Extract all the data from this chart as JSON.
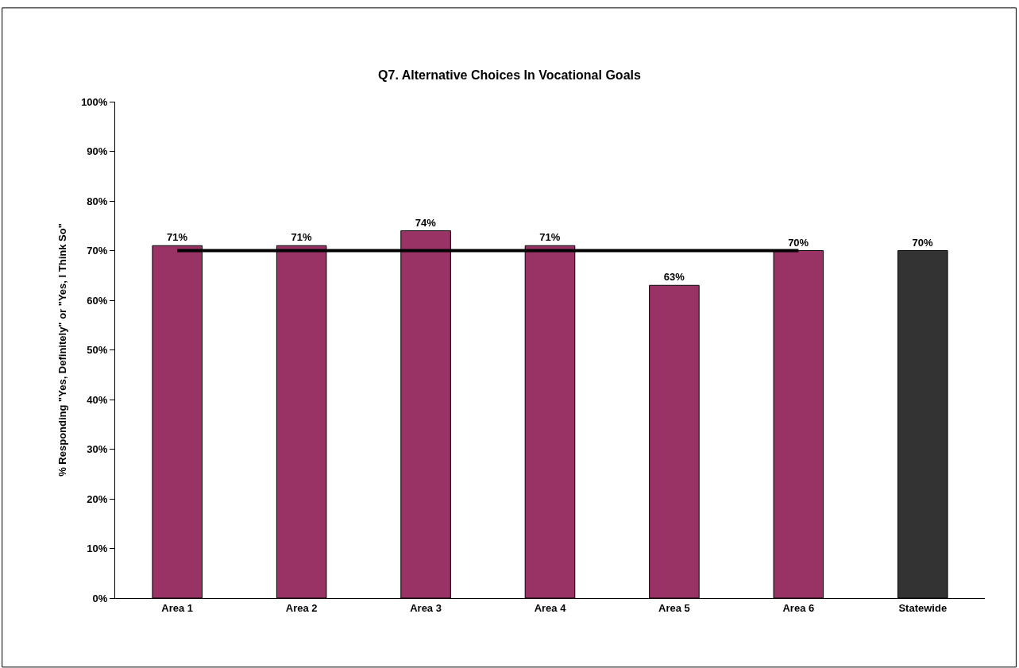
{
  "chart_data": {
    "type": "bar",
    "title": "Q7. Alternative Choices In Vocational Goals",
    "ylabel": "% Responding \"Yes, Definitely\" or \"Yes, I Think So\"",
    "categories": [
      "Area 1",
      "Area 2",
      "Area 3",
      "Area 4",
      "Area 5",
      "Area 6",
      "Statewide"
    ],
    "series": [
      {
        "colors": [
          "#993366",
          "#993366",
          "#993366",
          "#993366",
          "#993366",
          "#993366",
          "#333333"
        ],
        "values": [
          71,
          71,
          74,
          71,
          63,
          70,
          70
        ],
        "value_labels": [
          "71%",
          "71%",
          "74%",
          "71%",
          "63%",
          "70%",
          "70%"
        ]
      },
      {
        "type": "line",
        "color": "#000000",
        "values": [
          70,
          70,
          70,
          70,
          70,
          70,
          null
        ]
      }
    ],
    "ylim": [
      0,
      100
    ],
    "yticks": [
      {
        "value": 0,
        "label": "0%"
      },
      {
        "value": 10,
        "label": "10%"
      },
      {
        "value": 20,
        "label": "20%"
      },
      {
        "value": 30,
        "label": "30%"
      },
      {
        "value": 40,
        "label": "40%"
      },
      {
        "value": 50,
        "label": "50%"
      },
      {
        "value": 60,
        "label": "60%"
      },
      {
        "value": 70,
        "label": "70%"
      },
      {
        "value": 80,
        "label": "80%"
      },
      {
        "value": 90,
        "label": "90%"
      },
      {
        "value": 100,
        "label": "100%"
      }
    ],
    "legend": false
  }
}
